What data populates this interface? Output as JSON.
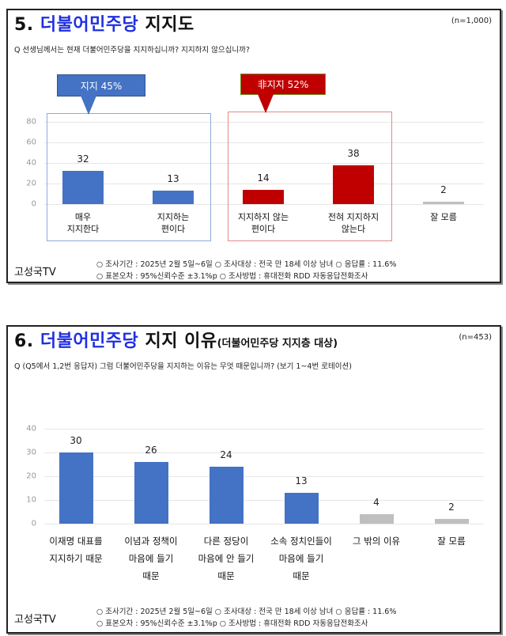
{
  "panel1": {
    "title_num": "5.",
    "title_brand": "더불어민주당",
    "title_rest": "지지도",
    "n_label": "(n=1,000)",
    "question": "Q 선생님께서는 현재 더불어민주당을 지지하십니까? 지지하지 않으십니까?",
    "callout_support": "지지 45%",
    "callout_oppose": "非지지 52%",
    "footer_brand": "고성국TV",
    "footer_line1": "○ 조사기간 : 2025년 2월 5일~6일 ○ 조사대상 : 전국 만 18세 이상 남녀 ○ 응답률 : 11.6%",
    "footer_line2": "○ 표본오차 : 95%신뢰수준 ±3.1%p ○ 조사방법 : 휴대전화 RDD 자동응답전화조사"
  },
  "panel2": {
    "title_num": "6.",
    "title_brand": "더불어민주당",
    "title_rest": "지지 이유",
    "title_sub": "(더불어민주당 지지층 대상)",
    "n_label": "(n=453)",
    "question": "Q (Q5에서 1,2번 응답자) 그럼 더불어민주당을 지지하는 이유는 무엇 때문입니까? (보기 1~4번 로테이션)",
    "footer_brand": "고성국TV",
    "footer_line1": "○ 조사기간 : 2025년 2월 5일~6일 ○ 조사대상 : 전국 만 18세 이상 남녀 ○ 응답률 : 11.6%",
    "footer_line2": "○ 표본오차 : 95%신뢰수준 ±3.1%p ○ 조사방법 : 휴대전화 RDD 자동응답전화조사"
  },
  "colors": {
    "blue": "#4472c4",
    "red": "#c00000",
    "gray": "#bfbfbf",
    "brand_blue": "#1f2fe0"
  },
  "chart_data": [
    {
      "type": "bar",
      "title": "5. 더불어민주당 지지도",
      "subtitle": "(n=1,000)",
      "categories": [
        "매우\n지지한다",
        "지지하는\n편이다",
        "지지하지 않는\n편이다",
        "전혀 지지하지\n않는다",
        "잘 모름"
      ],
      "values": [
        32,
        13,
        14,
        38,
        2
      ],
      "value_labels": [
        "32",
        "13",
        "14",
        "38",
        "2"
      ],
      "bar_colors": [
        "#4472c4",
        "#4472c4",
        "#c00000",
        "#c00000",
        "#bfbfbf"
      ],
      "yticks": [
        "80",
        "60",
        "40",
        "20",
        "0"
      ],
      "ylim": [
        0,
        80
      ],
      "annotations": [
        "지지 45%",
        "非지지 52%"
      ],
      "grid": true,
      "xlabel": "",
      "ylabel": ""
    },
    {
      "type": "bar",
      "title": "6. 더불어민주당 지지 이유(더불어민주당 지지층 대상)",
      "subtitle": "(n=453)",
      "categories": [
        "이재명 대표를\n지지하기 때문",
        "이념과 정책이\n마음에 들기\n때문",
        "다른 정당이\n마음에 안 들기\n때문",
        "소속 정치인들이\n마음에 들기\n때문",
        "그 밖의 이유",
        "잘 모름"
      ],
      "values": [
        30,
        26,
        24,
        13,
        4,
        2
      ],
      "value_labels": [
        "30",
        "26",
        "24",
        "13",
        "4",
        "2"
      ],
      "bar_colors": [
        "#4472c4",
        "#4472c4",
        "#4472c4",
        "#4472c4",
        "#bfbfbf",
        "#bfbfbf"
      ],
      "yticks": [
        "40",
        "30",
        "20",
        "10",
        "0"
      ],
      "ylim": [
        0,
        40
      ],
      "grid": true,
      "xlabel": "",
      "ylabel": ""
    }
  ]
}
